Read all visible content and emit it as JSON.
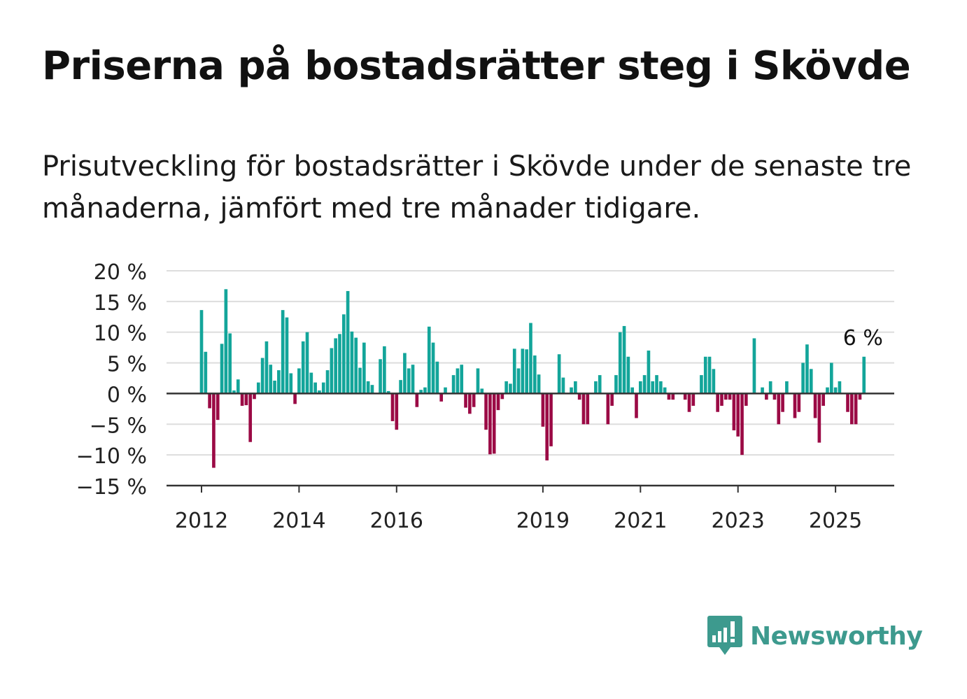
{
  "title": "Priserna på bostadsrätter steg i Skövde",
  "subtitle": "Prisutveckling för bostadsrätter i Skövde under de senaste tre månaderna, jämfört med tre månader tidigare.",
  "brand": {
    "name": "Newsworthy",
    "color": "#3d9a8e"
  },
  "colors": {
    "positive": "#13a59a",
    "negative": "#9b0a45",
    "grid": "#dddddd",
    "axis": "#333333"
  },
  "chart_data": {
    "type": "bar",
    "ylim": [
      -15,
      20
    ],
    "y_ticks": [
      20,
      15,
      10,
      5,
      0,
      -5,
      -10,
      -15
    ],
    "y_tick_labels": [
      "20 %",
      "15 %",
      "10 %",
      "5 %",
      "0 %",
      "−5 %",
      "−10 %",
      "−15 %"
    ],
    "x_tick_labels": [
      "2012",
      "2014",
      "2016",
      "2019",
      "2021",
      "2023",
      "2025"
    ],
    "x_tick_years": [
      2012,
      2014,
      2016,
      2019,
      2021,
      2023,
      2025
    ],
    "start": "2012-01",
    "grid": true,
    "last_value_label": "6 %",
    "values": [
      13.6,
      6.8,
      -2.4,
      -12.1,
      -4.3,
      8.1,
      17.0,
      9.8,
      0.5,
      2.3,
      -2.0,
      -1.9,
      -7.9,
      -0.9,
      1.8,
      5.8,
      8.5,
      4.7,
      2.1,
      3.8,
      13.6,
      12.4,
      3.3,
      -1.7,
      4.1,
      8.5,
      10.0,
      3.4,
      1.8,
      0.5,
      1.8,
      3.8,
      7.4,
      9.0,
      9.7,
      12.9,
      16.7,
      10.1,
      9.1,
      4.2,
      8.3,
      2.0,
      1.4,
      0.0,
      5.6,
      7.7,
      0.4,
      -4.5,
      -5.9,
      2.2,
      6.6,
      4.1,
      4.7,
      -2.2,
      0.6,
      1.0,
      10.9,
      8.3,
      5.2,
      -1.3,
      1.0,
      0.0,
      3.0,
      4.1,
      4.7,
      -2.3,
      -3.3,
      -2.2,
      4.1,
      0.8,
      -5.9,
      -9.9,
      -9.8,
      -2.7,
      -0.9,
      2.0,
      1.6,
      7.3,
      4.1,
      7.3,
      7.2,
      11.5,
      6.2,
      3.1,
      -5.4,
      -10.9,
      -8.6,
      0.0,
      6.4,
      2.6,
      0.0,
      1.0,
      2.0,
      -1.0,
      -5.0,
      -5.0,
      0.0,
      2.0,
      3.0,
      0.0,
      -5.0,
      -2.0,
      3.0,
      10.0,
      11.0,
      6.0,
      1.0,
      -4.0,
      2.0,
      3.0,
      7.0,
      2.0,
      3.0,
      2.0,
      1.0,
      -1.0,
      -1.0,
      0.0,
      0.0,
      -1.0,
      -3.0,
      -2.0,
      0.0,
      3.0,
      6.0,
      6.0,
      4.0,
      -3.0,
      -2.0,
      -1.0,
      -1.0,
      -6.0,
      -7.0,
      -10.0,
      -2.0,
      0.0,
      9.0,
      0.0,
      1.0,
      -1.0,
      2.0,
      -1.0,
      -5.0,
      -3.0,
      2.0,
      0.0,
      -4.0,
      -3.0,
      5.0,
      8.0,
      4.0,
      -4.0,
      -8.0,
      -2.0,
      1.0,
      5.0,
      1.0,
      2.0,
      0.0,
      -3.0,
      -5.0,
      -5.0,
      -1.0,
      6.0
    ]
  }
}
